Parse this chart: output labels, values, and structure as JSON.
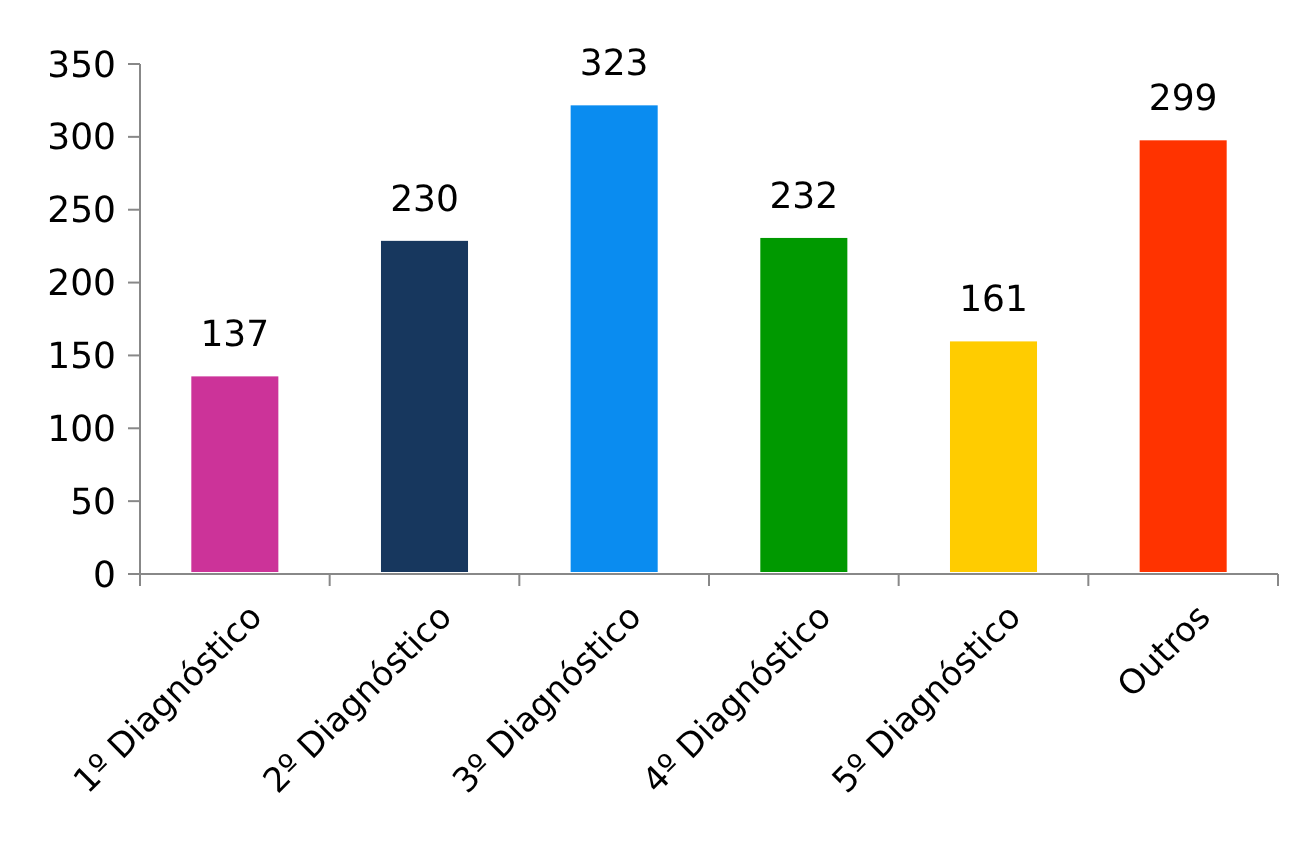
{
  "chart_data": {
    "type": "bar",
    "categories": [
      "1º Diagnóstico",
      "2º Diagnóstico",
      "3º Diagnóstico",
      "4º Diagnóstico",
      "5º Diagnóstico",
      "Outros"
    ],
    "values": [
      137,
      230,
      323,
      232,
      161,
      299
    ],
    "colors": [
      "#cc3399",
      "#17375e",
      "#0a8cf0",
      "#009900",
      "#ffcc00",
      "#ff3300"
    ],
    "ylim": [
      0,
      350
    ],
    "yticks": [
      0,
      50,
      100,
      150,
      200,
      250,
      300,
      350
    ],
    "data_labels": true,
    "grid": false
  }
}
